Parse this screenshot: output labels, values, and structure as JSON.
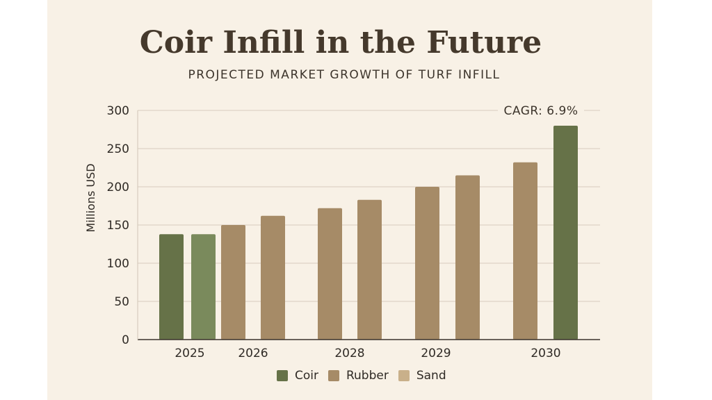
{
  "chart_data": {
    "type": "bar",
    "title": "Coir Infill in the Future",
    "subtitle": "PROJECTED MARKET GROWTH OF TURF INFILL",
    "xlabel": "",
    "ylabel": "Millions USD",
    "ylim": [
      0,
      300
    ],
    "yticks": [
      "0",
      "50",
      "100",
      "150",
      "200",
      "250",
      "300"
    ],
    "grid": true,
    "annotation": "CAGR: 6.9%",
    "x_tick_labels": [
      "2025",
      "2026",
      "2028",
      "2029",
      "2030"
    ],
    "bars": [
      {
        "group": "2025",
        "series": "Coir",
        "value": 138
      },
      {
        "group": "2025",
        "series": "Coir",
        "value": 138
      },
      {
        "group": "2026",
        "series": "Rubber",
        "value": 150
      },
      {
        "group": "2026",
        "series": "Rubber",
        "value": 162
      },
      {
        "group": "2028",
        "series": "Rubber",
        "value": 172
      },
      {
        "group": "2028",
        "series": "Rubber",
        "value": 183
      },
      {
        "group": "2029",
        "series": "Rubber",
        "value": 200
      },
      {
        "group": "2029",
        "series": "Rubber",
        "value": 215
      },
      {
        "group": "2030",
        "series": "Rubber",
        "value": 232
      },
      {
        "group": "2030",
        "series": "Coir",
        "value": 280
      }
    ],
    "legend": [
      {
        "name": "Coir",
        "color": "#667248"
      },
      {
        "name": "Rubber",
        "color": "#a68b67"
      },
      {
        "name": "Sand",
        "color": "#c9b08a"
      }
    ],
    "legend_position": "bottom-center"
  },
  "colors": {
    "background": "#f8f1e6",
    "coir": "#667248",
    "coir_light": "#7a8a5c",
    "rubber": "#a68b67",
    "sand": "#c9b08a"
  }
}
